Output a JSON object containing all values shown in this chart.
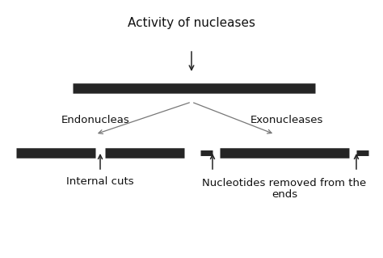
{
  "title": "Activity of nucleases",
  "label_endo": "Endonucleas",
  "label_exo": "Exonucleases",
  "label_internal": "Internal cuts",
  "label_nucleotides_line1": "Nucleotides removed from the",
  "label_nucleotides_line2": "ends",
  "bg_color": "#ffffff",
  "bar_color": "#252525",
  "line_color": "#777777",
  "arrow_color": "#252525",
  "font_color": "#111111",
  "title_fontsize": 11,
  "label_fontsize": 9.5,
  "bar_lw": 9,
  "small_bar_lw": 5,
  "figsize": [
    4.74,
    3.19
  ],
  "dpi": 100
}
